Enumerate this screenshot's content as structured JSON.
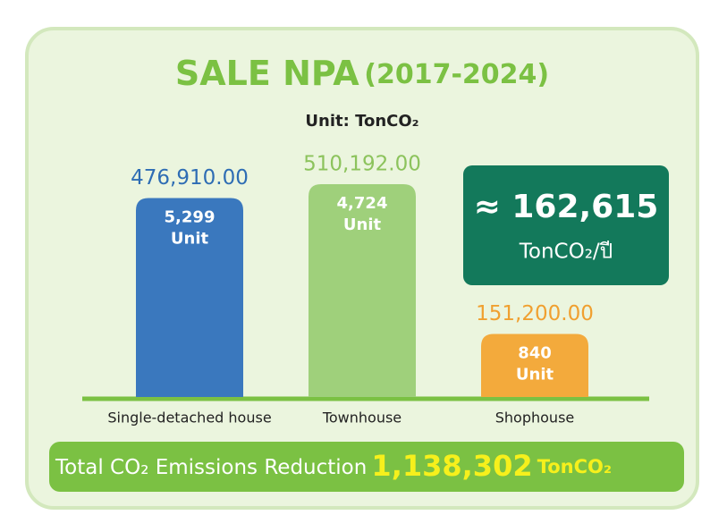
{
  "chart_data": {
    "type": "bar",
    "title": "SALE NPA",
    "title_period": "(2017-2024)",
    "subtitle": "Unit: TonCO₂",
    "categories": [
      "Single-detached house",
      "Townhouse",
      "Shophouse"
    ],
    "values": [
      476910.0,
      510192.0,
      151200.0
    ],
    "value_labels": [
      "476,910.00",
      "510,192.00",
      "151,200.00"
    ],
    "colors": [
      "#3a78be",
      "#9fd07b",
      "#f3aa3c"
    ],
    "label_colors": [
      "#2e6db4",
      "#8cc35c",
      "#f0a030"
    ],
    "unit_counts": [
      5299,
      4724,
      840
    ],
    "unit_count_labels": [
      "5,299",
      "4,724",
      "840"
    ],
    "unit_word": "Unit",
    "callout": {
      "value": "≈ 162,615",
      "unit": "TonCO₂/ปี"
    },
    "total": {
      "label": "Total CO₂ Emissions Reduction",
      "value": 1138302,
      "value_label": "1,138,302",
      "unit": "TonCO₂"
    }
  }
}
